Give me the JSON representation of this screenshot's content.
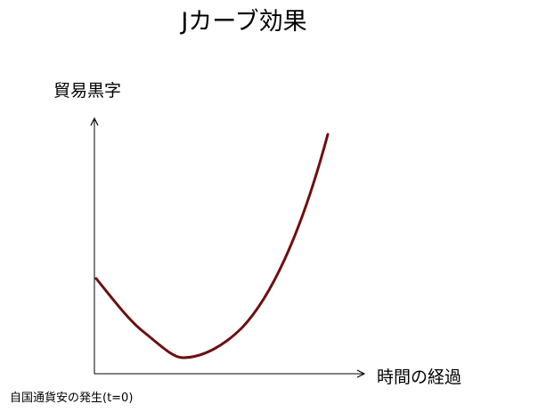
{
  "title": "Jカーブ効果",
  "y_axis_label": "貿易黒字",
  "x_axis_label": "時間の経過",
  "origin_note": "自国通貨安の発生(t=0)",
  "colors": {
    "curve": "#6e0f0f",
    "axes": "#000000",
    "background": "#ffffff"
  }
}
